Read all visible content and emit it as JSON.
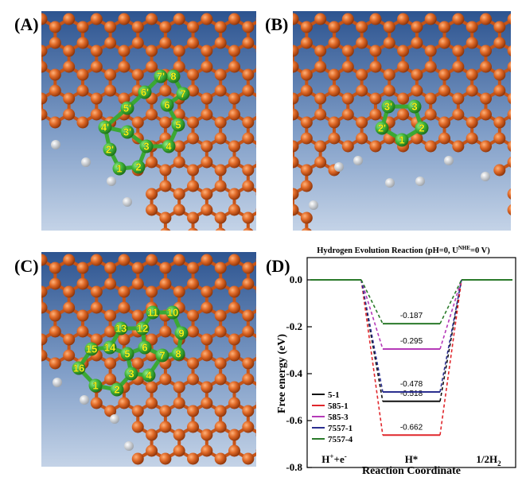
{
  "panels": {
    "a": {
      "label": "(A)",
      "atoms": [
        "1",
        "2",
        "3",
        "4",
        "5",
        "6",
        "7",
        "8",
        "1'",
        "2'",
        "3'",
        "4'",
        "5'",
        "6'",
        "7'"
      ]
    },
    "b": {
      "label": "(B)",
      "atoms": [
        "1",
        "2",
        "3",
        "2'",
        "3'"
      ]
    },
    "c": {
      "label": "(C)",
      "atoms": [
        "1",
        "2",
        "3",
        "4",
        "5",
        "6",
        "7",
        "8",
        "9",
        "10",
        "11",
        "12",
        "13",
        "14",
        "15",
        "16"
      ]
    },
    "d": {
      "label": "(D)"
    }
  },
  "chart_data": {
    "type": "line",
    "title": "Hydrogen Evolution Reaction (pH=0, U",
    "title_superscript": "NHE",
    "title_suffix": "=0 V)",
    "xlabel": "Reaction Coordinate",
    "ylabel": "Free energy (eV)",
    "categories": [
      "H+e-",
      "H*",
      "1/2H2"
    ],
    "category_labels": [
      {
        "base": "H",
        "sup1": "+",
        "mid": "+e",
        "sup2": "-",
        "sub": ""
      },
      {
        "base": "H*",
        "sup1": "",
        "mid": "",
        "sup2": "",
        "sub": ""
      },
      {
        "base": "1/2H",
        "sup1": "",
        "mid": "",
        "sup2": "",
        "sub": "2"
      }
    ],
    "yticks": [
      "0.0",
      "-0.2",
      "-0.4",
      "-0.6",
      "-0.8"
    ],
    "ylim": [
      -0.8,
      0.0
    ],
    "legend_position": "bottom-left",
    "series": [
      {
        "name": "5-1",
        "color": "#111111",
        "values": [
          0,
          -0.518,
          0
        ]
      },
      {
        "name": "585-1",
        "color": "#e0262b",
        "values": [
          0,
          -0.662,
          0
        ]
      },
      {
        "name": "585-3",
        "color": "#b53ab8",
        "values": [
          0,
          -0.295,
          0
        ]
      },
      {
        "name": "7557-1",
        "color": "#2b2f8f",
        "values": [
          0,
          -0.478,
          0
        ]
      },
      {
        "name": "7557-4",
        "color": "#2a7a2a",
        "values": [
          0,
          -0.187,
          0
        ]
      }
    ],
    "data_labels": [
      "-0.518",
      "-0.662",
      "-0.295",
      "-0.478",
      "-0.187"
    ]
  }
}
